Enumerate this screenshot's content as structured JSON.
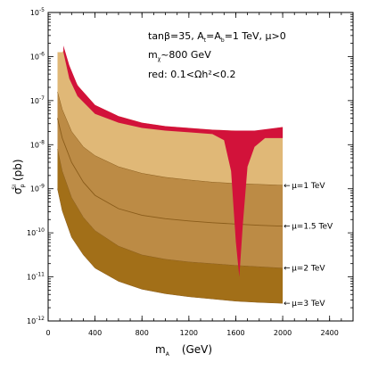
{
  "chart_data": {
    "type": "area",
    "x_scale": "linear",
    "y_scale": "log",
    "xlim": [
      0,
      2600
    ],
    "ylim_exp": [
      -12,
      -5
    ],
    "x_ticks": [
      0,
      400,
      800,
      1200,
      1600,
      2000,
      2400
    ],
    "y_ticks_exp": [
      -12,
      -11,
      -10,
      -9,
      -8,
      -7,
      -6,
      -5
    ],
    "y_tick_base": "10",
    "xlabel": {
      "main": "m",
      "sub": "A",
      "unit": "(GeV)"
    },
    "ylabel": {
      "main": "σ",
      "sub": "p",
      "sup": "SI",
      "unit": "(pb)"
    },
    "annotations": [
      "tanβ=35, Aₐ=Aᵦ=1 TeV, μ>0",
      "mχ~800 GeV",
      "red: 0.1<Ωh²<0.2"
    ],
    "annotation_text": {
      "line1": "tanβ=35,  A",
      "line1_sub1": "t",
      "line1_mid": "=A",
      "line1_sub2": "b",
      "line1_end": "=1 TeV,  μ>0",
      "line2": "m",
      "line2_sub": "χ",
      "line2_end": "~800 GeV",
      "line3": "red:  0.1<Ωh²<0.2"
    },
    "colors": {
      "light": "#e0b877",
      "mid": "#bc8b45",
      "dark": "#a26f18",
      "relic": "#d2123a",
      "curve": "#8a5c1a"
    },
    "series": [
      {
        "name": "μ=1 TeV",
        "label": "μ=1 TeV",
        "x": [
          80,
          120,
          200,
          300,
          400,
          600,
          800,
          1000,
          1200,
          1400,
          1600,
          1800,
          2000
        ],
        "log_sigma": [
          -6.8,
          -7.2,
          -7.7,
          -8.05,
          -8.25,
          -8.5,
          -8.65,
          -8.74,
          -8.8,
          -8.85,
          -8.88,
          -8.9,
          -8.92
        ]
      },
      {
        "name": "μ=1.5 TeV",
        "label": "μ=1.5 TeV",
        "x": [
          80,
          120,
          200,
          300,
          400,
          600,
          800,
          1000,
          1200,
          1400,
          1600,
          1800,
          2000
        ],
        "log_sigma": [
          -7.4,
          -7.85,
          -8.4,
          -8.85,
          -9.15,
          -9.45,
          -9.6,
          -9.68,
          -9.73,
          -9.77,
          -9.8,
          -9.83,
          -9.85
        ]
      },
      {
        "name": "μ=2 TeV",
        "label": "μ=2 TeV",
        "x": [
          80,
          120,
          200,
          300,
          400,
          600,
          800,
          1000,
          1200,
          1400,
          1600,
          1800,
          2000
        ],
        "log_sigma": [
          -8.1,
          -8.6,
          -9.2,
          -9.65,
          -9.95,
          -10.3,
          -10.5,
          -10.6,
          -10.66,
          -10.7,
          -10.74,
          -10.77,
          -10.8
        ]
      },
      {
        "name": "μ=3 TeV",
        "label": "μ=3 TeV",
        "x": [
          80,
          120,
          200,
          300,
          400,
          600,
          800,
          1000,
          1200,
          1400,
          1600,
          1800,
          2000
        ],
        "log_sigma": [
          -9.0,
          -9.5,
          -10.1,
          -10.5,
          -10.8,
          -11.1,
          -11.28,
          -11.38,
          -11.45,
          -11.5,
          -11.55,
          -11.58,
          -11.6
        ]
      }
    ],
    "upper_boundary": {
      "x": [
        130,
        180,
        250,
        400,
        600,
        800,
        1000,
        1200,
        1400,
        1600,
        1800,
        2000
      ],
      "log_sigma": [
        -5.75,
        -6.2,
        -6.65,
        -7.1,
        -7.35,
        -7.5,
        -7.58,
        -7.62,
        -7.66,
        -7.68,
        -7.68,
        -7.6
      ]
    },
    "relic_band": {
      "x": [
        130,
        180,
        250,
        400,
        600,
        800,
        1000,
        1200,
        1400,
        1500,
        1560,
        1600,
        1630,
        1660,
        1700,
        1760,
        1850,
        2000
      ],
      "log_sigma_high": [
        -5.75,
        -6.2,
        -6.65,
        -7.1,
        -7.35,
        -7.5,
        -7.58,
        -7.62,
        -7.66,
        -7.67,
        -7.68,
        -7.68,
        -7.68,
        -7.68,
        -7.68,
        -7.68,
        -7.65,
        -7.6
      ],
      "log_sigma_low": [
        -5.9,
        -6.5,
        -6.9,
        -7.3,
        -7.5,
        -7.62,
        -7.68,
        -7.72,
        -7.76,
        -7.9,
        -8.6,
        -10.2,
        -11.0,
        -9.8,
        -8.5,
        -8.05,
        -7.85,
        -7.85
      ]
    }
  }
}
